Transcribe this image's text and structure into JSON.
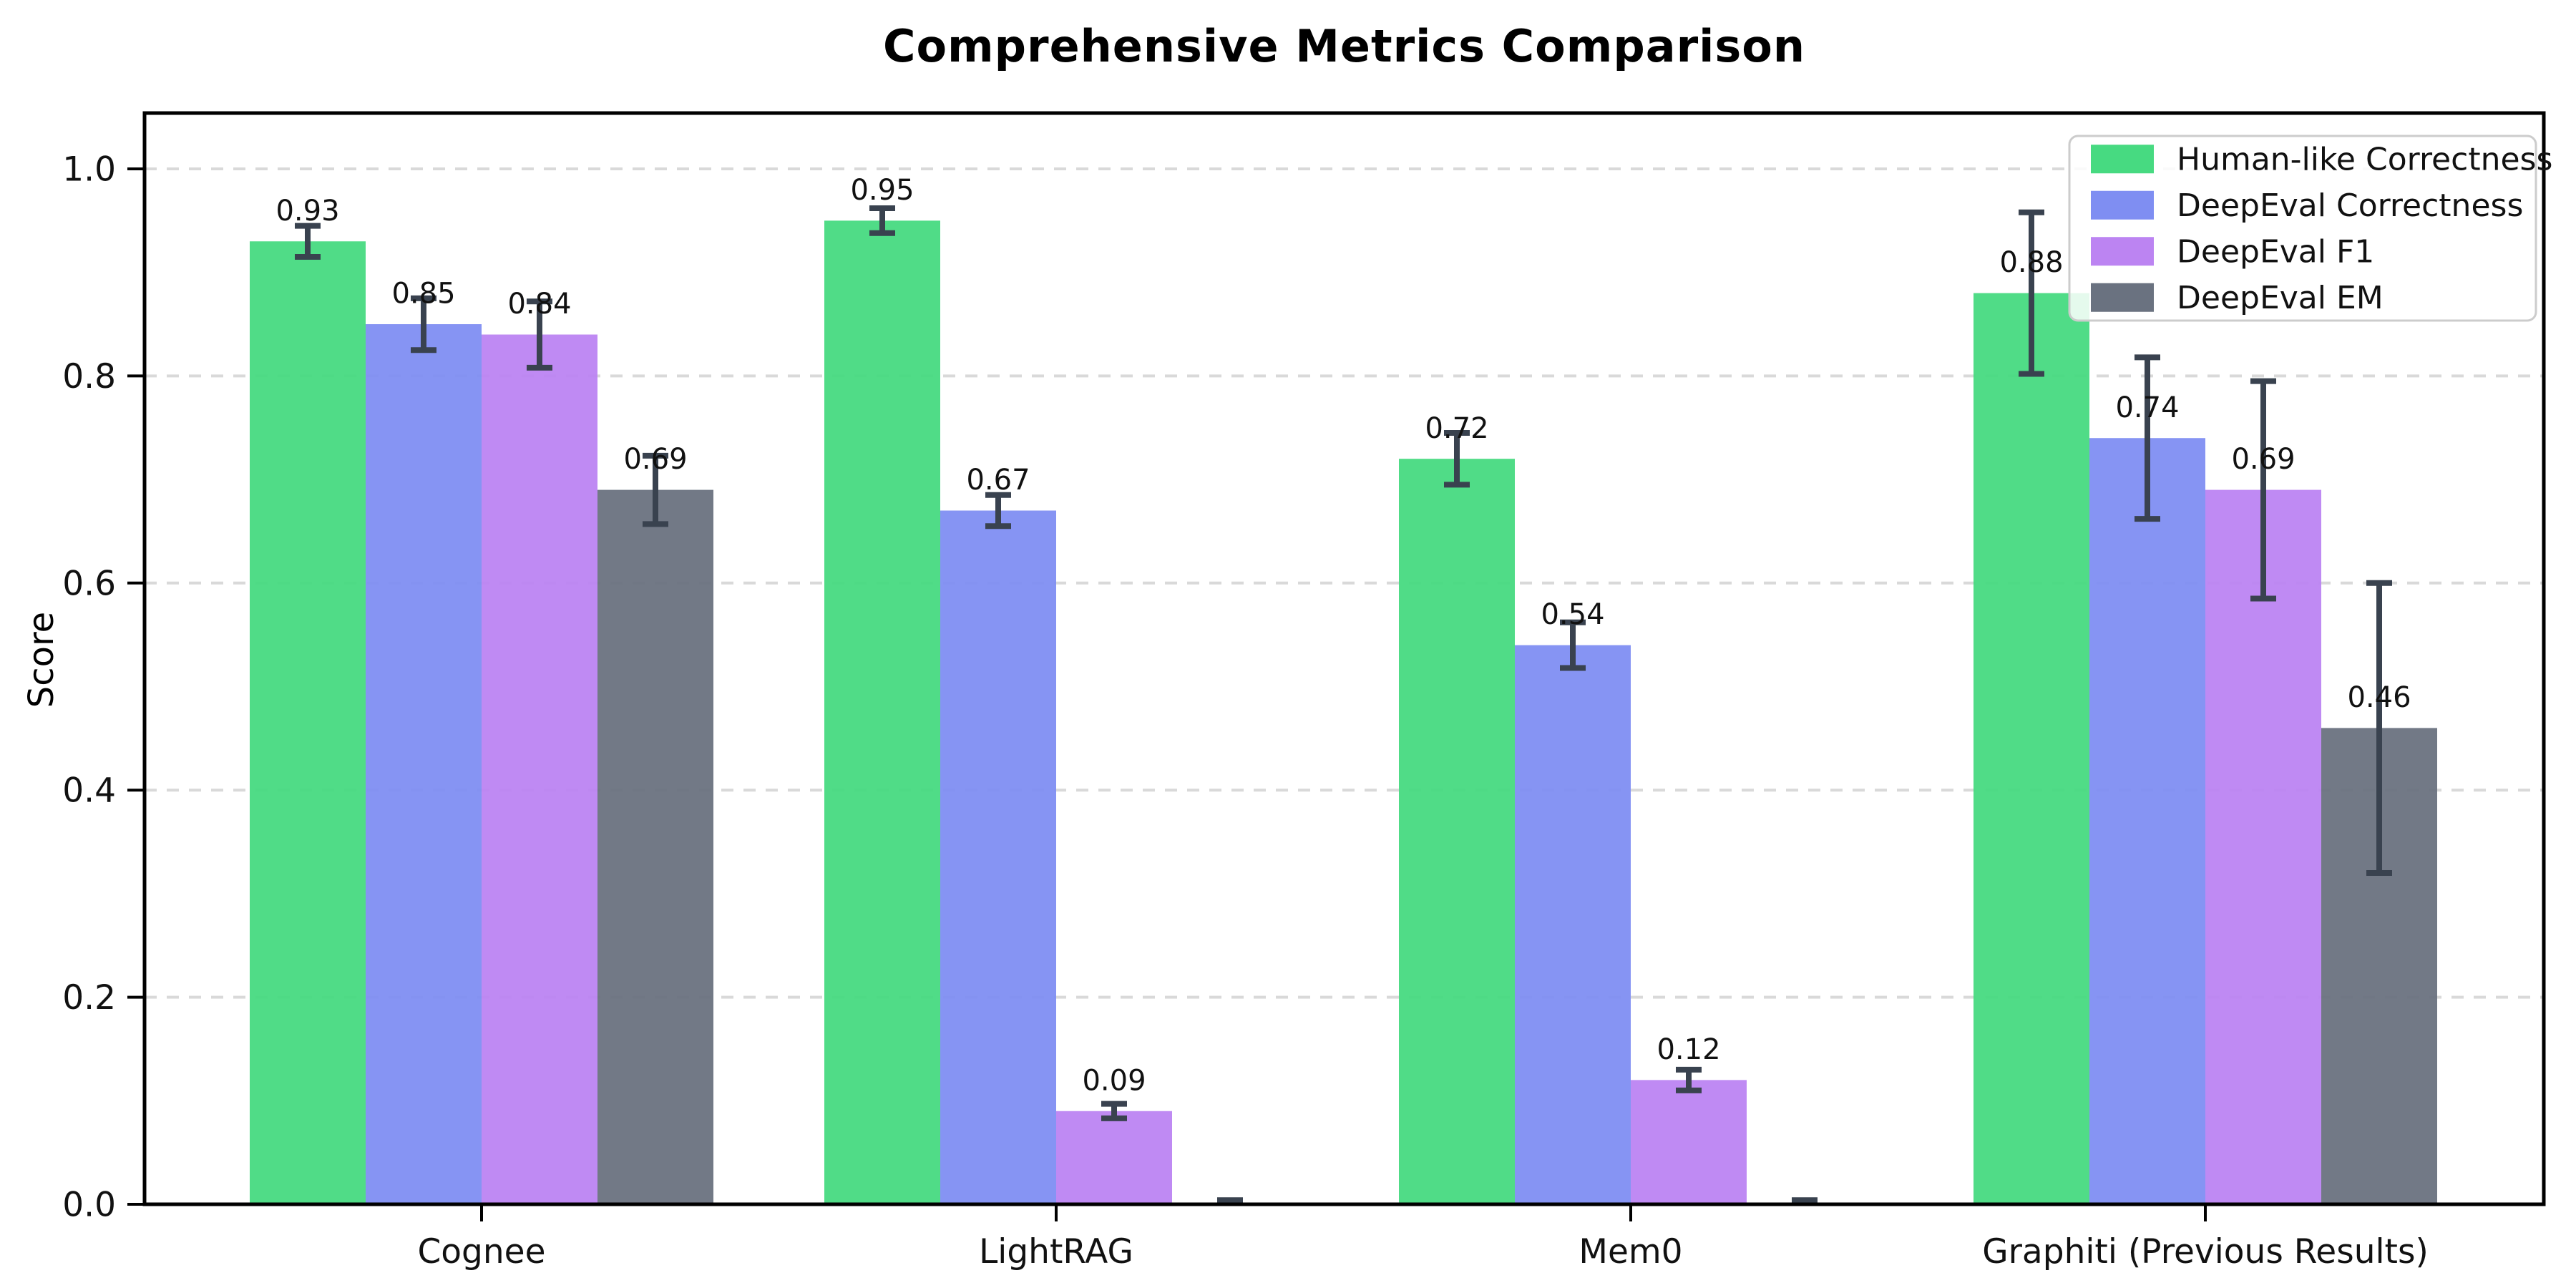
{
  "figure": {
    "background_color": "#ffffff"
  },
  "chart_data": {
    "type": "bar",
    "title": "Comprehensive Metrics Comparison",
    "xlabel": "",
    "ylabel": "Score",
    "ylim": [
      0,
      1.05
    ],
    "yticks": [
      0.0,
      0.2,
      0.4,
      0.6,
      0.8,
      1.0
    ],
    "ytick_labels": [
      "0.0",
      "0.2",
      "0.4",
      "0.6",
      "0.8",
      "1.0"
    ],
    "grid": "horizontal-dashed",
    "grid_color": "#d9d9d9",
    "legend_position": "upper right",
    "categories": [
      "Cognee",
      "LightRAG",
      "Mem0",
      "Graphiti (Previous Results)"
    ],
    "series": [
      {
        "name": "Human-like Correctness",
        "color": "#47da81",
        "values": [
          0.93,
          0.95,
          0.72,
          0.88
        ],
        "errors": [
          0.015,
          0.012,
          0.025,
          0.078
        ],
        "labels": [
          "0.93",
          "0.95",
          "0.72",
          "0.88"
        ]
      },
      {
        "name": "DeepEval Correctness",
        "color": "#7f8ef2",
        "values": [
          0.85,
          0.67,
          0.54,
          0.74
        ],
        "errors": [
          0.025,
          0.015,
          0.022,
          0.078
        ],
        "labels": [
          "0.85",
          "0.67",
          "0.54",
          "0.74"
        ]
      },
      {
        "name": "DeepEval F1",
        "color": "#bc84f2",
        "values": [
          0.84,
          0.09,
          0.12,
          0.69
        ],
        "errors": [
          0.032,
          0.007,
          0.01,
          0.105
        ],
        "labels": [
          "0.84",
          "0.09",
          "0.12",
          "0.69"
        ]
      },
      {
        "name": "DeepEval EM",
        "color": "#6a7280",
        "values": [
          0.69,
          0.0,
          0.0,
          0.46
        ],
        "errors": [
          0.033,
          0.004,
          0.004,
          0.14
        ],
        "labels": [
          "0.69",
          null,
          null,
          "0.46"
        ]
      }
    ],
    "error_bar_color": "#39424f",
    "axis_color": "#000000",
    "tick_label_color": "#111111",
    "value_label_color": "#111111"
  }
}
